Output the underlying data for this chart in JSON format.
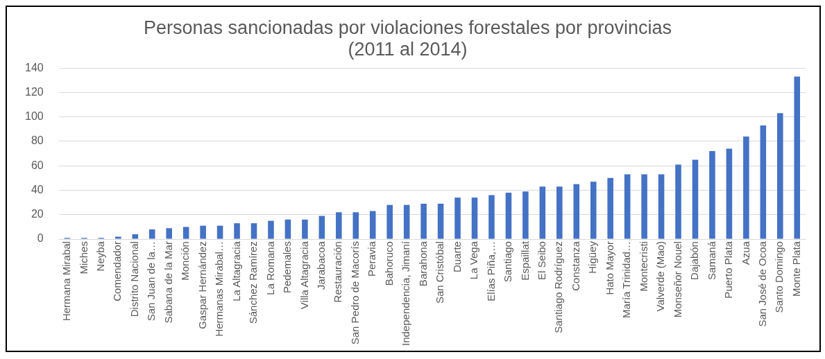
{
  "chart_data": {
    "type": "bar",
    "title": [
      "Personas sancionadas por violaciones forestales por provincias",
      "(2011 al 2014)"
    ],
    "categories": [
      "Hermana Mirabal",
      "Miches",
      "Neyba",
      "Comendador",
      "Distrito Nacional",
      "San Juan de la…",
      "Sabana de la Mar",
      "Monción",
      "Gaspar Hernández",
      "Hermanas Mirabal…",
      "La Altagracia",
      "Sánchez Ramírez",
      "La Romana",
      "Pedemales",
      "Villa Altagracia",
      "Jarabacoa",
      "Restauración",
      "San Pedro de Macorís",
      "Peravia",
      "Bahoruco",
      "Independencia, Jimaní",
      "Barahona",
      "San Cristóbal",
      "Duarte",
      "La Vega",
      "Elías Piña,…",
      "Santiago",
      "Espaillat",
      "El Seibo",
      "Santiago Rodríguez",
      "Constanza",
      "Higüey",
      "Hato Mayor",
      "María Trinidad…",
      "Montecristi",
      "Valverde (Mao)",
      "Monseñor Nouel",
      "Dajabón",
      "Samaná",
      "Puerto Plata",
      "Azua",
      "San José de Ocoa",
      "Santo Domingo",
      "Monte Plata"
    ],
    "values": [
      1,
      1,
      1,
      2,
      4,
      8,
      9,
      10,
      11,
      11,
      13,
      13,
      15,
      16,
      16,
      19,
      22,
      22,
      23,
      28,
      28,
      29,
      29,
      34,
      34,
      36,
      38,
      39,
      43,
      43,
      45,
      47,
      50,
      53,
      53,
      53,
      61,
      65,
      72,
      74,
      84,
      93,
      103,
      133
    ],
    "color": "#4472c4",
    "ylim": [
      0,
      140
    ],
    "yticks": [
      0,
      20,
      40,
      60,
      80,
      100,
      120,
      140
    ],
    "grid": "y"
  }
}
